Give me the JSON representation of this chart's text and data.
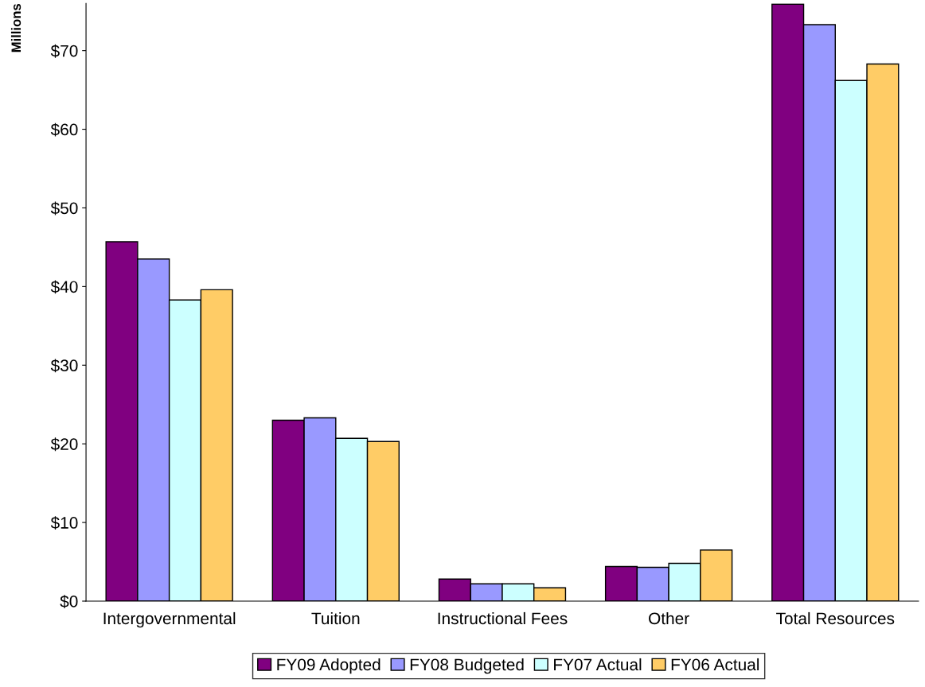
{
  "chart_data": {
    "type": "bar",
    "ylabel": "Millions",
    "categories": [
      "Intergovernmental",
      "Tuition",
      "Instructional Fees",
      "Other",
      "Total Resources"
    ],
    "series": [
      {
        "name": "FY09 Adopted",
        "color": "#800080",
        "values": [
          45.7,
          23.0,
          2.8,
          4.4,
          75.9
        ]
      },
      {
        "name": "FY08 Budgeted",
        "color": "#9999ff",
        "values": [
          43.5,
          23.3,
          2.2,
          4.3,
          73.3
        ]
      },
      {
        "name": "FY07 Actual",
        "color": "#ccffff",
        "values": [
          38.3,
          20.7,
          2.2,
          4.8,
          66.2
        ]
      },
      {
        "name": "FY06 Actual",
        "color": "#ffcc66",
        "values": [
          39.6,
          20.3,
          1.7,
          6.5,
          68.3
        ]
      }
    ],
    "ylim": [
      0,
      76
    ],
    "yticks": [
      {
        "value": 0,
        "label": "$0"
      },
      {
        "value": 10,
        "label": "$10"
      },
      {
        "value": 20,
        "label": "$20"
      },
      {
        "value": 30,
        "label": "$30"
      },
      {
        "value": 40,
        "label": "$40"
      },
      {
        "value": 50,
        "label": "$50"
      },
      {
        "value": 60,
        "label": "$60"
      },
      {
        "value": 70,
        "label": "$70"
      }
    ],
    "grid": false,
    "legend": "bottom"
  }
}
